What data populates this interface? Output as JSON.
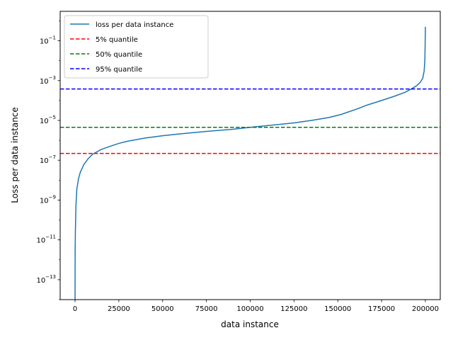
{
  "chart_data": {
    "type": "line",
    "title": "",
    "xlabel": "data instance",
    "ylabel": "Loss per data instance",
    "yscale": "log",
    "xlim": [
      -8500,
      208500
    ],
    "ylim": [
      1e-14,
      3
    ],
    "x_ticks": [
      0,
      25000,
      50000,
      75000,
      100000,
      125000,
      150000,
      175000,
      200000
    ],
    "x_tick_labels": [
      "0",
      "25000",
      "50000",
      "75000",
      "100000",
      "125000",
      "150000",
      "175000",
      "200000"
    ],
    "y_ticks": [
      1e-13,
      1e-11,
      1e-09,
      1e-07,
      1e-05,
      0.001,
      0.1
    ],
    "y_tick_labels": [
      {
        "base": "10",
        "exp": "−13"
      },
      {
        "base": "10",
        "exp": "−11"
      },
      {
        "base": "10",
        "exp": "−9"
      },
      {
        "base": "10",
        "exp": "−7"
      },
      {
        "base": "10",
        "exp": "−5"
      },
      {
        "base": "10",
        "exp": "−3"
      },
      {
        "base": "10",
        "exp": "−1"
      }
    ],
    "grid": false,
    "legend_position": "top-left",
    "series": [
      {
        "name": "loss per data instance",
        "style": "solid",
        "color": "#1f77b4",
        "x": [
          0,
          50,
          200,
          500,
          1000,
          2000,
          3000,
          5000,
          7500,
          10000,
          15000,
          20000,
          25000,
          30000,
          40000,
          50000,
          60000,
          75000,
          90000,
          100000,
          110000,
          125000,
          135000,
          145000,
          152000,
          160000,
          167000,
          175000,
          182000,
          188000,
          192000,
          195000,
          197000,
          198500,
          199300,
          199700,
          199850,
          199950,
          200000
        ],
        "y": [
          7e-15,
          3e-12,
          3e-11,
          5e-10,
          3.5e-09,
          1.2e-08,
          2.5e-08,
          6e-08,
          1.2e-07,
          2e-07,
          3.5e-07,
          5e-07,
          7e-07,
          9e-07,
          1.3e-06,
          1.7e-06,
          2.1e-06,
          2.8e-06,
          3.6e-06,
          4.5e-06,
          5.5e-06,
          7.5e-06,
          1e-05,
          1.4e-05,
          2e-05,
          3.5e-05,
          6e-05,
          0.0001,
          0.00016,
          0.00025,
          0.00038,
          0.00055,
          0.0008,
          0.0013,
          0.003,
          0.01,
          0.05,
          0.2,
          0.5
        ]
      },
      {
        "name": "5% quantile",
        "style": "dashed",
        "color": "#ff0000",
        "constant": 2.2e-07
      },
      {
        "name": "50% quantile",
        "style": "dashed",
        "color": "#008000",
        "constant": 4.5e-06
      },
      {
        "name": "95% quantile",
        "style": "dashed",
        "color": "#0000ff",
        "constant": 0.00038
      }
    ]
  }
}
